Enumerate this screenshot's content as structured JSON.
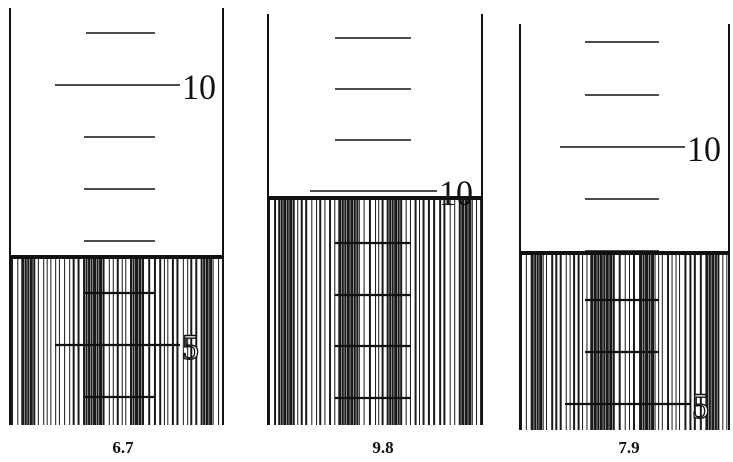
{
  "cylinders": [
    {
      "name": "cylinder-1",
      "reading": "6.7",
      "mark_labels": [
        "10",
        "5"
      ]
    },
    {
      "name": "cylinder-2",
      "reading": "9.8",
      "mark_labels": [
        "10"
      ]
    },
    {
      "name": "cylinder-3",
      "reading": "7.9",
      "mark_labels": [
        "10",
        "5"
      ]
    }
  ],
  "colors": {
    "ink": "#111111",
    "liquid_stripe": "#1a1a1a",
    "background": "#ffffff"
  }
}
